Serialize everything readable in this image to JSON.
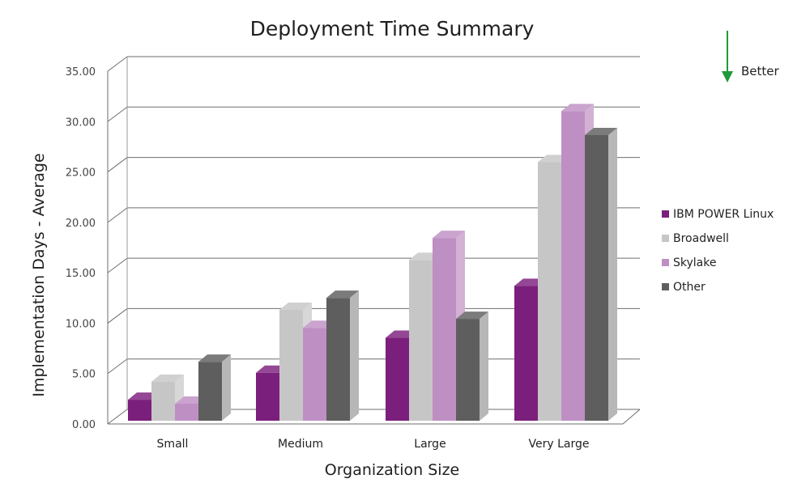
{
  "chart_data": {
    "type": "bar",
    "title": "Deployment Time Summary",
    "xlabel": "Organization Size",
    "ylabel": "Implementation Days - Average",
    "categories": [
      "Small",
      "Medium",
      "Large",
      "Very Large"
    ],
    "ylim": [
      0,
      35
    ],
    "yticks": [
      "0.00",
      "5.00",
      "10.00",
      "15.00",
      "20.00",
      "25.00",
      "30.00",
      "35.00"
    ],
    "grid": true,
    "legend_position": "right",
    "series": [
      {
        "name": "IBM POWER Linux",
        "color": "#7b1f7c",
        "values": [
          2.1,
          4.8,
          8.3,
          13.5
        ]
      },
      {
        "name": "Broadwell",
        "color": "#c6c6c6",
        "values": [
          3.9,
          11.1,
          16.1,
          25.9
        ]
      },
      {
        "name": "Skylake",
        "color": "#be8fc3",
        "values": [
          1.7,
          9.3,
          18.3,
          31.0
        ]
      },
      {
        "name": "Other",
        "color": "#5e5e5e",
        "values": [
          5.9,
          12.3,
          10.2,
          28.6
        ]
      }
    ],
    "annotation": {
      "text": "Better",
      "direction": "down",
      "color": "#1e9a3a"
    }
  }
}
